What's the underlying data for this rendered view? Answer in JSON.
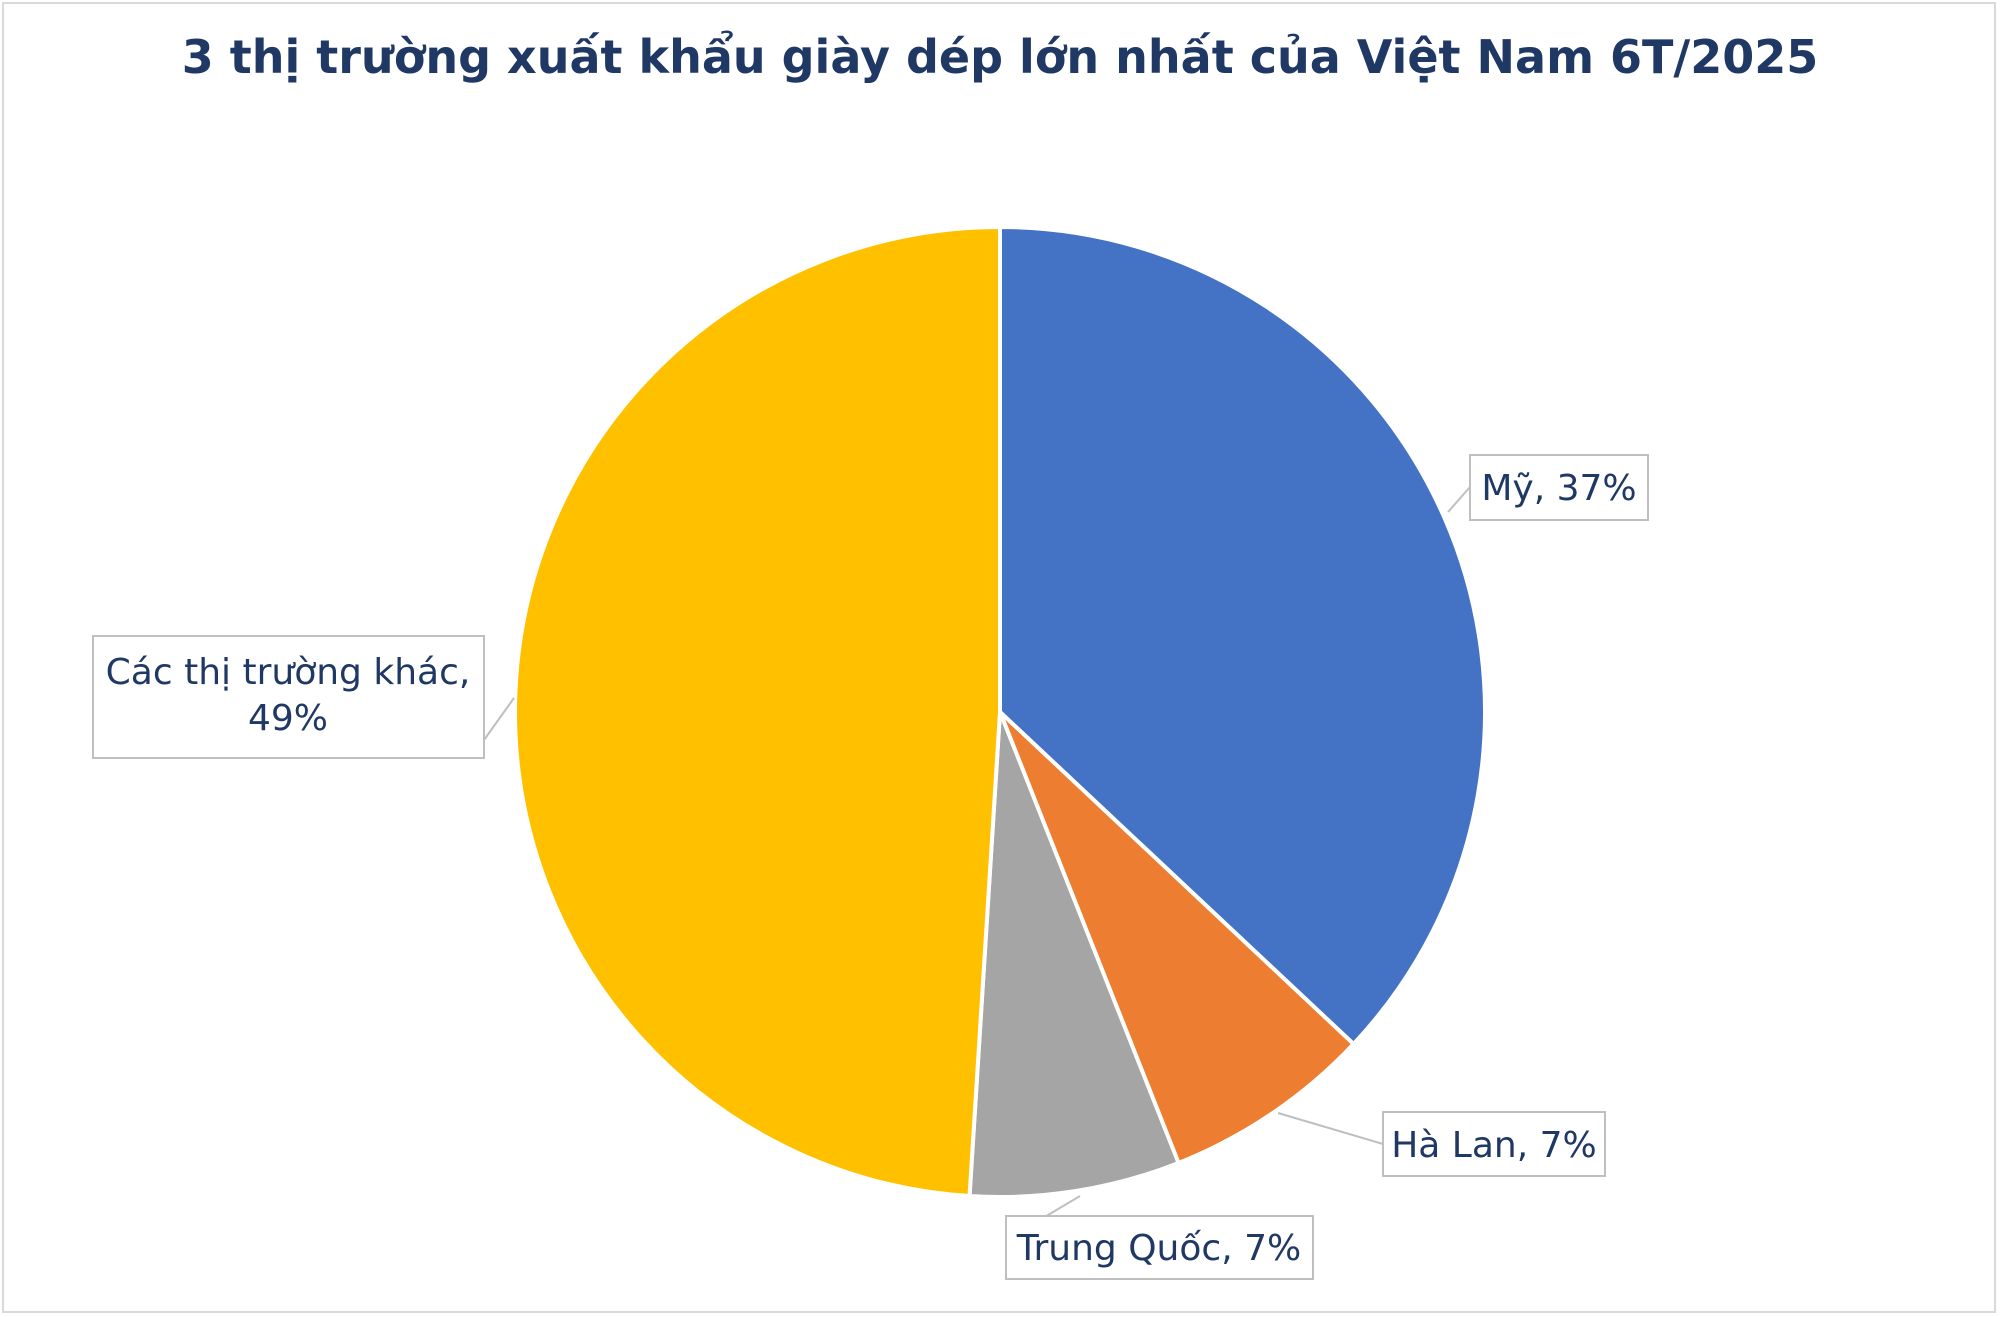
{
  "chart_data": {
    "type": "pie",
    "title": "3 thị trường xuất khẩu giày dép lớn nhất của Việt Nam 6T/2025",
    "slices": [
      {
        "name": "Mỹ",
        "value": 37,
        "label": "Mỹ, 37%",
        "color": "#4472c4"
      },
      {
        "name": "Hà Lan",
        "value": 7,
        "label": "Hà Lan, 7%",
        "color": "#ed7d31"
      },
      {
        "name": "Trung Quốc",
        "value": 7,
        "label": "Trung Quốc, 7%",
        "color": "#a5a5a5"
      },
      {
        "name": "Các thị trường khác",
        "value": 49,
        "label_lines": [
          "Các thị trường khác,",
          "49%"
        ],
        "color": "#ffc000"
      }
    ],
    "legend": "none"
  }
}
